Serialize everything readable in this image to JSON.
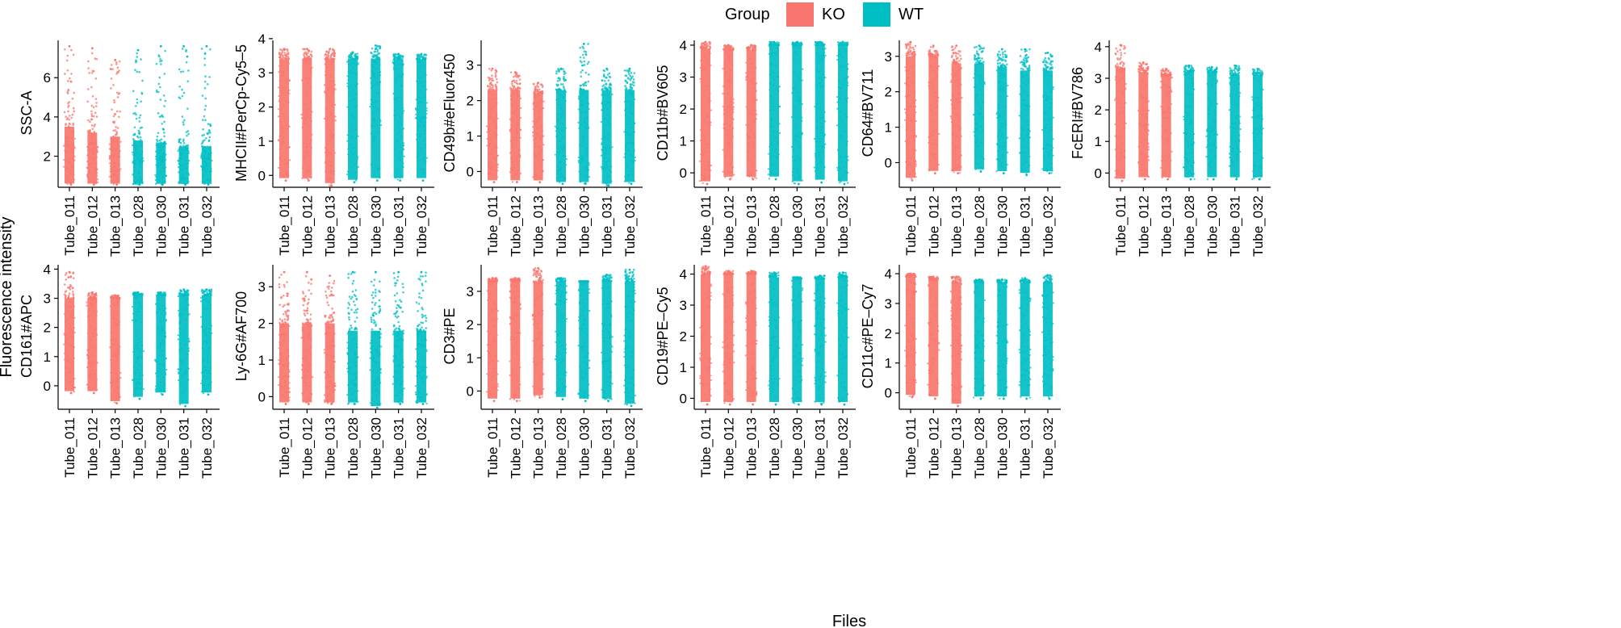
{
  "legend": {
    "title": "Group",
    "entries": [
      {
        "label": "KO",
        "color": "#F8766D"
      },
      {
        "label": "WT",
        "color": "#00BFC4"
      }
    ]
  },
  "axis_titles": {
    "x": "Files",
    "y": "Fluorescence intensity"
  },
  "chart_data": {
    "type": "scatter",
    "subtype": "jitter strip plot (faceted)",
    "categories": [
      "Tube_011",
      "Tube_012",
      "Tube_013",
      "Tube_028",
      "Tube_030",
      "Tube_031",
      "Tube_032"
    ],
    "groups": [
      "KO",
      "KO",
      "KO",
      "WT",
      "WT",
      "WT",
      "WT"
    ],
    "xlabel": "Files",
    "ylabel": "Fluorescence intensity",
    "legend_position": "top-center",
    "panels": [
      {
        "label": "SSC-A",
        "ylim": [
          0.5,
          7.9
        ],
        "ticks": [
          2,
          4,
          6
        ],
        "ranges": [
          [
            0.55,
            7.6
          ],
          [
            0.55,
            7.5
          ],
          [
            0.55,
            6.9
          ],
          [
            0.55,
            7.4
          ],
          [
            0.55,
            7.6
          ],
          [
            0.55,
            7.6
          ],
          [
            0.55,
            7.6
          ]
        ],
        "dense_top": [
          3.5,
          3.2,
          3.0,
          2.8,
          2.7,
          2.5,
          2.5
        ]
      },
      {
        "label": "MHCII#PerCp-Cy5–5",
        "ylim": [
          -0.3,
          3.95
        ],
        "ticks": [
          0,
          1,
          2,
          3,
          4
        ],
        "ranges": [
          [
            -0.15,
            3.7
          ],
          [
            -0.15,
            3.7
          ],
          [
            -0.3,
            3.7
          ],
          [
            -0.2,
            3.6
          ],
          [
            -0.15,
            3.8
          ],
          [
            -0.15,
            3.55
          ],
          [
            -0.15,
            3.55
          ]
        ],
        "dense_top": [
          3.4,
          3.4,
          3.4,
          3.4,
          3.4,
          3.4,
          3.4
        ]
      },
      {
        "label": "CD49b#eFluor450",
        "ylim": [
          -0.4,
          3.7
        ],
        "ticks": [
          0,
          1,
          2,
          3
        ],
        "ranges": [
          [
            -0.3,
            2.9
          ],
          [
            -0.3,
            2.8
          ],
          [
            -0.3,
            2.5
          ],
          [
            -0.35,
            2.9
          ],
          [
            -0.35,
            3.6
          ],
          [
            -0.4,
            2.9
          ],
          [
            -0.35,
            2.9
          ]
        ],
        "dense_top": [
          2.3,
          2.3,
          2.2,
          2.3,
          2.3,
          2.3,
          2.3
        ]
      },
      {
        "label": "CD11b#BV605",
        "ylim": [
          -0.4,
          4.15
        ],
        "ticks": [
          0,
          1,
          2,
          3,
          4
        ],
        "ranges": [
          [
            -0.35,
            4.1
          ],
          [
            -0.2,
            4.0
          ],
          [
            -0.2,
            4.0
          ],
          [
            -0.2,
            4.1
          ],
          [
            -0.35,
            4.1
          ],
          [
            -0.3,
            4.1
          ],
          [
            -0.35,
            4.1
          ]
        ],
        "dense_top": [
          3.9,
          3.85,
          3.85,
          4.0,
          4.0,
          4.0,
          4.0
        ]
      },
      {
        "label": "CD64#BV711",
        "ylim": [
          -0.65,
          3.45
        ],
        "ticks": [
          0,
          1,
          2,
          3
        ],
        "ranges": [
          [
            -0.5,
            3.4
          ],
          [
            -0.3,
            3.3
          ],
          [
            -0.3,
            3.3
          ],
          [
            -0.25,
            3.3
          ],
          [
            -0.3,
            3.2
          ],
          [
            -0.35,
            3.2
          ],
          [
            -0.3,
            3.1
          ]
        ],
        "dense_top": [
          3.0,
          3.0,
          2.8,
          2.8,
          2.7,
          2.6,
          2.6
        ]
      },
      {
        "label": "FcERI#BV786",
        "ylim": [
          -0.4,
          4.2
        ],
        "ticks": [
          0,
          1,
          2,
          3,
          4
        ],
        "ranges": [
          [
            -0.25,
            4.05
          ],
          [
            -0.2,
            3.5
          ],
          [
            -0.2,
            3.3
          ],
          [
            -0.2,
            3.4
          ],
          [
            -0.2,
            3.35
          ],
          [
            -0.2,
            3.4
          ],
          [
            -0.2,
            3.3
          ]
        ],
        "dense_top": [
          3.3,
          3.2,
          3.1,
          3.2,
          3.2,
          3.1,
          3.1
        ]
      },
      {
        "label": "CD161#APC",
        "ylim": [
          -0.75,
          4.15
        ],
        "ticks": [
          0,
          1,
          2,
          3,
          4
        ],
        "ranges": [
          [
            -0.25,
            3.9
          ],
          [
            -0.25,
            3.2
          ],
          [
            -0.6,
            3.1
          ],
          [
            -0.45,
            3.2
          ],
          [
            -0.3,
            3.2
          ],
          [
            -0.7,
            3.3
          ],
          [
            -0.3,
            3.3
          ]
        ],
        "dense_top": [
          3.0,
          3.0,
          3.0,
          3.1,
          3.1,
          3.1,
          3.1
        ]
      },
      {
        "label": "Ly-6G#AF700",
        "ylim": [
          -0.3,
          3.6
        ],
        "ticks": [
          0,
          1,
          2,
          3
        ],
        "ranges": [
          [
            -0.2,
            3.4
          ],
          [
            -0.2,
            3.4
          ],
          [
            -0.2,
            3.3
          ],
          [
            -0.2,
            3.4
          ],
          [
            -0.3,
            3.4
          ],
          [
            -0.2,
            3.4
          ],
          [
            -0.2,
            3.4
          ]
        ],
        "dense_top": [
          2.0,
          2.0,
          2.0,
          1.8,
          1.8,
          1.8,
          1.8
        ]
      },
      {
        "label": "CD3#PE",
        "ylim": [
          -0.5,
          3.8
        ],
        "ticks": [
          0,
          1,
          2,
          3
        ],
        "ranges": [
          [
            -0.3,
            3.4
          ],
          [
            -0.3,
            3.4
          ],
          [
            -0.2,
            3.7
          ],
          [
            -0.25,
            3.4
          ],
          [
            -0.3,
            3.3
          ],
          [
            -0.3,
            3.5
          ],
          [
            -0.45,
            3.65
          ]
        ],
        "dense_top": [
          3.3,
          3.3,
          3.3,
          3.3,
          3.3,
          3.3,
          3.3
        ]
      },
      {
        "label": "CD19#PE–Cy5",
        "ylim": [
          -0.3,
          4.3
        ],
        "ticks": [
          0,
          1,
          2,
          3,
          4
        ],
        "ranges": [
          [
            -0.2,
            4.25
          ],
          [
            -0.2,
            4.1
          ],
          [
            -0.2,
            4.1
          ],
          [
            -0.2,
            4.05
          ],
          [
            -0.2,
            3.9
          ],
          [
            -0.2,
            3.95
          ],
          [
            -0.2,
            4.05
          ]
        ],
        "dense_top": [
          4.0,
          4.0,
          4.0,
          3.9,
          3.85,
          3.85,
          3.9
        ]
      },
      {
        "label": "CD11c#PE–Cy7",
        "ylim": [
          -0.5,
          4.3
        ],
        "ticks": [
          0,
          1,
          2,
          3,
          4
        ],
        "ranges": [
          [
            -0.15,
            4.0
          ],
          [
            -0.2,
            3.9
          ],
          [
            -0.45,
            3.9
          ],
          [
            -0.2,
            3.8
          ],
          [
            -0.2,
            3.8
          ],
          [
            -0.2,
            3.85
          ],
          [
            -0.2,
            3.95
          ]
        ],
        "dense_top": [
          3.9,
          3.8,
          3.7,
          3.7,
          3.7,
          3.7,
          3.7
        ]
      }
    ]
  }
}
